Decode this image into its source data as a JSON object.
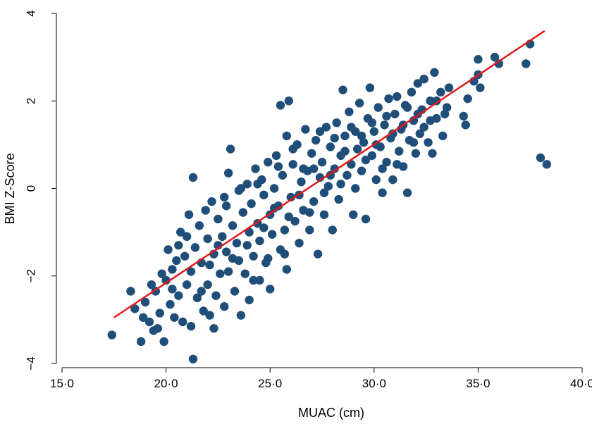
{
  "chart_data": {
    "type": "scatter",
    "title": "",
    "xlabel": "MUAC (cm)",
    "ylabel": "BMI Z-Score",
    "xlim": [
      15,
      40
    ],
    "ylim": [
      -4,
      4
    ],
    "x_ticks": [
      15,
      20,
      25,
      30,
      35,
      40
    ],
    "x_tick_labels": [
      "15·0",
      "20·0",
      "25·0",
      "30·0",
      "35·0",
      "40·0"
    ],
    "y_ticks": [
      -4,
      -2,
      0,
      2,
      4
    ],
    "y_tick_labels": [
      "−4",
      "−2",
      "0",
      "2",
      "4"
    ],
    "grid": false,
    "legend": "none",
    "point_color": "#1f4e79",
    "fit_line": {
      "color": "#e31a1c",
      "x": [
        17.5,
        38.2
      ],
      "y": [
        -2.95,
        3.6
      ]
    },
    "series": [
      {
        "points": [
          [
            17.4,
            -3.35
          ],
          [
            18.3,
            -2.35
          ],
          [
            18.5,
            -2.75
          ],
          [
            18.8,
            -3.5
          ],
          [
            19.0,
            -2.6
          ],
          [
            19.2,
            -3.05
          ],
          [
            19.3,
            -2.2
          ],
          [
            19.5,
            -2.35
          ],
          [
            19.6,
            -3.2
          ],
          [
            19.7,
            -2.85
          ],
          [
            19.8,
            -1.95
          ],
          [
            19.9,
            -3.5
          ],
          [
            20.0,
            -2.1
          ],
          [
            20.1,
            -1.4
          ],
          [
            20.2,
            -2.65
          ],
          [
            20.3,
            -1.85
          ],
          [
            20.4,
            -2.95
          ],
          [
            20.5,
            -1.65
          ],
          [
            20.6,
            -2.45
          ],
          [
            20.7,
            -1.0
          ],
          [
            20.8,
            -3.05
          ],
          [
            20.9,
            -1.55
          ],
          [
            21.0,
            -2.2
          ],
          [
            21.1,
            -0.6
          ],
          [
            21.2,
            -1.9
          ],
          [
            21.2,
            -3.15
          ],
          [
            21.3,
            0.25
          ],
          [
            21.3,
            -3.9
          ],
          [
            21.4,
            -1.35
          ],
          [
            21.5,
            -2.5
          ],
          [
            21.6,
            -0.85
          ],
          [
            21.7,
            -1.7
          ],
          [
            21.8,
            -2.8
          ],
          [
            21.9,
            -0.5
          ],
          [
            22.0,
            -1.15
          ],
          [
            22.0,
            -2.2
          ],
          [
            22.1,
            -1.75
          ],
          [
            22.2,
            -0.3
          ],
          [
            22.3,
            -3.2
          ],
          [
            22.3,
            -1.5
          ],
          [
            22.4,
            -2.45
          ],
          [
            22.5,
            -0.7
          ],
          [
            22.6,
            -1.95
          ],
          [
            22.7,
            -1.1
          ],
          [
            22.8,
            -0.2
          ],
          [
            22.8,
            -2.7
          ],
          [
            22.9,
            -1.45
          ],
          [
            23.0,
            0.35
          ],
          [
            23.0,
            -1.9
          ],
          [
            23.1,
            0.9
          ],
          [
            23.2,
            -0.85
          ],
          [
            23.3,
            -2.35
          ],
          [
            23.4,
            -1.25
          ],
          [
            23.5,
            -0.05
          ],
          [
            23.5,
            -1.65
          ],
          [
            23.6,
            -2.9
          ],
          [
            23.7,
            -0.55
          ],
          [
            23.8,
            -1.95
          ],
          [
            23.9,
            0.1
          ],
          [
            24.0,
            -1.0
          ],
          [
            24.0,
            -2.55
          ],
          [
            24.1,
            -0.35
          ],
          [
            24.2,
            -1.55
          ],
          [
            24.3,
            0.45
          ],
          [
            24.4,
            -0.8
          ],
          [
            24.5,
            -2.1
          ],
          [
            24.5,
            -1.2
          ],
          [
            24.6,
            0.2
          ],
          [
            24.7,
            -0.15
          ],
          [
            24.8,
            -1.7
          ],
          [
            24.9,
            0.6
          ],
          [
            25.0,
            -0.6
          ],
          [
            25.0,
            -2.3
          ],
          [
            25.1,
            -1.05
          ],
          [
            25.2,
            0.0
          ],
          [
            25.3,
            0.75
          ],
          [
            25.4,
            -0.4
          ],
          [
            25.5,
            -1.4
          ],
          [
            25.5,
            1.9
          ],
          [
            25.6,
            0.3
          ],
          [
            25.7,
            -0.95
          ],
          [
            25.8,
            1.2
          ],
          [
            25.8,
            -1.85
          ],
          [
            25.9,
            2.0
          ],
          [
            26.0,
            -0.2
          ],
          [
            26.1,
            0.55
          ],
          [
            26.2,
            -0.75
          ],
          [
            26.3,
            1.0
          ],
          [
            26.4,
            -1.25
          ],
          [
            26.5,
            0.15
          ],
          [
            26.6,
            -0.5
          ],
          [
            26.7,
            1.35
          ],
          [
            26.8,
            0.4
          ],
          [
            26.9,
            -0.95
          ],
          [
            27.0,
            0.8
          ],
          [
            27.1,
            -0.3
          ],
          [
            27.2,
            1.1
          ],
          [
            27.3,
            -1.5
          ],
          [
            27.4,
            0.25
          ],
          [
            27.5,
            0.6
          ],
          [
            27.6,
            -0.6
          ],
          [
            27.7,
            1.4
          ],
          [
            27.8,
            0.05
          ],
          [
            27.9,
            0.95
          ],
          [
            28.0,
            -0.95
          ],
          [
            28.1,
            0.45
          ],
          [
            28.2,
            1.5
          ],
          [
            28.3,
            -0.25
          ],
          [
            28.4,
            0.75
          ],
          [
            28.5,
            2.25
          ],
          [
            28.6,
            1.2
          ],
          [
            28.7,
            0.3
          ],
          [
            28.8,
            1.75
          ],
          [
            28.9,
            0.55
          ],
          [
            29.0,
            -0.6
          ],
          [
            29.1,
            1.3
          ],
          [
            29.2,
            0.9
          ],
          [
            29.3,
            1.95
          ],
          [
            29.4,
            0.4
          ],
          [
            29.5,
            1.05
          ],
          [
            29.6,
            -0.7
          ],
          [
            29.7,
            1.6
          ],
          [
            29.8,
            2.3
          ],
          [
            29.9,
            0.75
          ],
          [
            30.0,
            1.3
          ],
          [
            30.1,
            0.2
          ],
          [
            30.2,
            1.85
          ],
          [
            30.3,
            0.95
          ],
          [
            30.4,
            -0.1
          ],
          [
            30.5,
            1.45
          ],
          [
            30.6,
            0.6
          ],
          [
            30.7,
            2.05
          ],
          [
            30.8,
            1.15
          ],
          [
            30.9,
            0.2
          ],
          [
            31.0,
            1.7
          ],
          [
            31.1,
            2.1
          ],
          [
            31.2,
            0.85
          ],
          [
            31.3,
            1.35
          ],
          [
            31.4,
            0.5
          ],
          [
            31.5,
            1.9
          ],
          [
            31.6,
            -0.1
          ],
          [
            31.7,
            1.1
          ],
          [
            31.8,
            2.2
          ],
          [
            31.9,
            1.55
          ],
          [
            32.0,
            0.8
          ],
          [
            32.1,
            2.4
          ],
          [
            32.2,
            1.25
          ],
          [
            32.3,
            1.8
          ],
          [
            32.4,
            2.5
          ],
          [
            32.6,
            1.05
          ],
          [
            32.7,
            2.0
          ],
          [
            32.8,
            0.8
          ],
          [
            32.9,
            2.65
          ],
          [
            33.0,
            1.6
          ],
          [
            33.2,
            2.2
          ],
          [
            33.3,
            1.2
          ],
          [
            33.5,
            1.85
          ],
          [
            33.6,
            2.3
          ],
          [
            34.3,
            1.65
          ],
          [
            34.4,
            1.45
          ],
          [
            34.5,
            2.05
          ],
          [
            34.8,
            2.45
          ],
          [
            35.0,
            2.6
          ],
          [
            35.0,
            2.95
          ],
          [
            35.1,
            2.3
          ],
          [
            35.8,
            3.0
          ],
          [
            36.0,
            2.85
          ],
          [
            37.3,
            2.85
          ],
          [
            37.5,
            3.3
          ],
          [
            38.0,
            0.7
          ],
          [
            38.3,
            0.55
          ],
          [
            18.9,
            -2.95
          ],
          [
            19.4,
            -3.25
          ],
          [
            20.3,
            -2.3
          ],
          [
            20.6,
            -1.3
          ],
          [
            21.0,
            -1.1
          ],
          [
            21.7,
            -2.35
          ],
          [
            22.1,
            -2.9
          ],
          [
            22.5,
            -1.3
          ],
          [
            22.9,
            -0.4
          ],
          [
            23.2,
            -1.6
          ],
          [
            23.6,
            0.0
          ],
          [
            23.9,
            -1.3
          ],
          [
            24.2,
            -2.1
          ],
          [
            24.4,
            0.1
          ],
          [
            24.7,
            -0.9
          ],
          [
            24.9,
            -1.6
          ],
          [
            25.2,
            -0.45
          ],
          [
            25.4,
            0.5
          ],
          [
            25.7,
            -1.5
          ],
          [
            25.9,
            -0.65
          ],
          [
            26.1,
            0.9
          ],
          [
            26.4,
            -0.15
          ],
          [
            26.6,
            0.45
          ],
          [
            26.9,
            -0.55
          ],
          [
            27.1,
            0.45
          ],
          [
            27.4,
            1.3
          ],
          [
            27.6,
            -0.1
          ],
          [
            27.9,
            0.3
          ],
          [
            28.1,
            1.15
          ],
          [
            28.4,
            0.1
          ],
          [
            28.6,
            0.85
          ],
          [
            28.9,
            1.4
          ],
          [
            29.1,
            0.0
          ],
          [
            29.4,
            1.2
          ],
          [
            29.6,
            0.65
          ],
          [
            29.9,
            1.5
          ],
          [
            30.1,
            1.0
          ],
          [
            30.4,
            0.45
          ],
          [
            30.6,
            1.65
          ],
          [
            30.9,
            1.25
          ],
          [
            31.1,
            0.55
          ],
          [
            31.4,
            1.45
          ],
          [
            31.6,
            1.85
          ],
          [
            31.9,
            1.05
          ],
          [
            32.1,
            1.7
          ],
          [
            32.4,
            1.4
          ],
          [
            32.7,
            1.55
          ],
          [
            33.0,
            2.0
          ],
          [
            33.4,
            1.7
          ]
        ]
      }
    ]
  }
}
